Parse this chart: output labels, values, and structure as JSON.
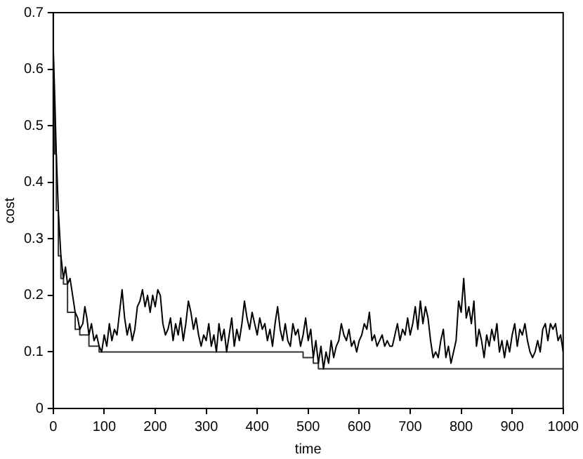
{
  "chart_data": {
    "type": "line",
    "xlabel": "time",
    "ylabel": "cost",
    "xlim": [
      0,
      1000
    ],
    "ylim": [
      0,
      0.7
    ],
    "xticks": [
      0,
      100,
      200,
      300,
      400,
      500,
      600,
      700,
      800,
      900,
      1000
    ],
    "yticks": [
      0,
      0.1,
      0.2,
      0.3,
      0.4,
      0.5,
      0.6,
      0.7
    ],
    "grid": false,
    "legend": false,
    "marker": "none",
    "line_style": "solid",
    "series": [
      {
        "color": "#000000",
        "x": [
          0,
          3,
          6,
          10,
          15,
          20,
          24,
          28,
          33,
          38,
          43,
          48,
          52,
          58,
          62,
          66,
          70,
          75,
          80,
          85,
          90,
          95,
          100,
          105,
          110,
          115,
          120,
          125,
          130,
          135,
          140,
          145,
          150,
          155,
          160,
          165,
          170,
          175,
          180,
          185,
          190,
          195,
          200,
          205,
          210,
          215,
          220,
          225,
          230,
          235,
          240,
          245,
          250,
          255,
          260,
          265,
          270,
          275,
          280,
          285,
          290,
          295,
          300,
          305,
          310,
          315,
          320,
          325,
          330,
          335,
          340,
          345,
          350,
          355,
          360,
          365,
          370,
          375,
          380,
          385,
          390,
          395,
          400,
          405,
          410,
          415,
          420,
          425,
          430,
          435,
          440,
          445,
          450,
          455,
          460,
          465,
          470,
          475,
          480,
          485,
          490,
          495,
          500,
          505,
          510,
          515,
          520,
          525,
          530,
          535,
          540,
          545,
          550,
          555,
          560,
          565,
          570,
          575,
          580,
          585,
          590,
          595,
          600,
          605,
          610,
          615,
          620,
          625,
          630,
          635,
          640,
          645,
          650,
          655,
          660,
          665,
          670,
          675,
          680,
          685,
          690,
          695,
          700,
          705,
          710,
          715,
          720,
          725,
          730,
          735,
          740,
          745,
          750,
          755,
          760,
          765,
          770,
          775,
          780,
          785,
          790,
          795,
          800,
          805,
          810,
          815,
          820,
          825,
          830,
          835,
          840,
          845,
          850,
          855,
          860,
          865,
          870,
          875,
          880,
          885,
          890,
          895,
          900,
          905,
          910,
          915,
          920,
          925,
          930,
          935,
          940,
          945,
          950,
          955,
          960,
          965,
          970,
          975,
          980,
          985,
          990,
          995,
          1000
        ],
        "values": [
          0.64,
          0.55,
          0.45,
          0.35,
          0.27,
          0.23,
          0.25,
          0.22,
          0.23,
          0.2,
          0.17,
          0.16,
          0.14,
          0.15,
          0.18,
          0.16,
          0.13,
          0.15,
          0.12,
          0.13,
          0.11,
          0.1,
          0.13,
          0.11,
          0.15,
          0.12,
          0.14,
          0.13,
          0.17,
          0.21,
          0.16,
          0.13,
          0.15,
          0.12,
          0.14,
          0.18,
          0.19,
          0.21,
          0.18,
          0.2,
          0.17,
          0.2,
          0.18,
          0.21,
          0.2,
          0.15,
          0.13,
          0.14,
          0.16,
          0.12,
          0.15,
          0.13,
          0.16,
          0.12,
          0.15,
          0.19,
          0.17,
          0.14,
          0.16,
          0.13,
          0.11,
          0.13,
          0.12,
          0.15,
          0.11,
          0.13,
          0.1,
          0.15,
          0.12,
          0.14,
          0.1,
          0.13,
          0.16,
          0.11,
          0.14,
          0.12,
          0.15,
          0.19,
          0.16,
          0.14,
          0.17,
          0.15,
          0.13,
          0.16,
          0.14,
          0.15,
          0.12,
          0.14,
          0.11,
          0.15,
          0.18,
          0.14,
          0.12,
          0.15,
          0.12,
          0.11,
          0.15,
          0.13,
          0.14,
          0.11,
          0.13,
          0.16,
          0.12,
          0.14,
          0.09,
          0.12,
          0.08,
          0.11,
          0.07,
          0.1,
          0.08,
          0.12,
          0.09,
          0.11,
          0.12,
          0.15,
          0.13,
          0.12,
          0.14,
          0.11,
          0.12,
          0.1,
          0.12,
          0.13,
          0.15,
          0.14,
          0.17,
          0.12,
          0.13,
          0.11,
          0.12,
          0.13,
          0.11,
          0.12,
          0.11,
          0.11,
          0.13,
          0.15,
          0.12,
          0.14,
          0.13,
          0.16,
          0.13,
          0.15,
          0.18,
          0.14,
          0.19,
          0.15,
          0.18,
          0.16,
          0.12,
          0.09,
          0.1,
          0.09,
          0.12,
          0.14,
          0.09,
          0.11,
          0.08,
          0.1,
          0.12,
          0.19,
          0.17,
          0.23,
          0.16,
          0.18,
          0.15,
          0.19,
          0.11,
          0.14,
          0.12,
          0.09,
          0.13,
          0.11,
          0.14,
          0.12,
          0.15,
          0.1,
          0.12,
          0.09,
          0.12,
          0.1,
          0.13,
          0.15,
          0.11,
          0.14,
          0.13,
          0.15,
          0.12,
          0.1,
          0.09,
          0.1,
          0.12,
          0.1,
          0.14,
          0.15,
          0.12,
          0.15,
          0.14,
          0.15,
          0.12,
          0.13,
          0.1
        ]
      },
      {
        "type": "step",
        "color": "#333333",
        "x": [
          0,
          3,
          6,
          10,
          15,
          20,
          28,
          43,
          52,
          70,
          90,
          95,
          490,
          510,
          520,
          530,
          1000
        ],
        "values": [
          0.64,
          0.55,
          0.45,
          0.35,
          0.27,
          0.23,
          0.22,
          0.17,
          0.14,
          0.13,
          0.11,
          0.1,
          0.1,
          0.09,
          0.08,
          0.07,
          0.07
        ]
      }
    ]
  }
}
